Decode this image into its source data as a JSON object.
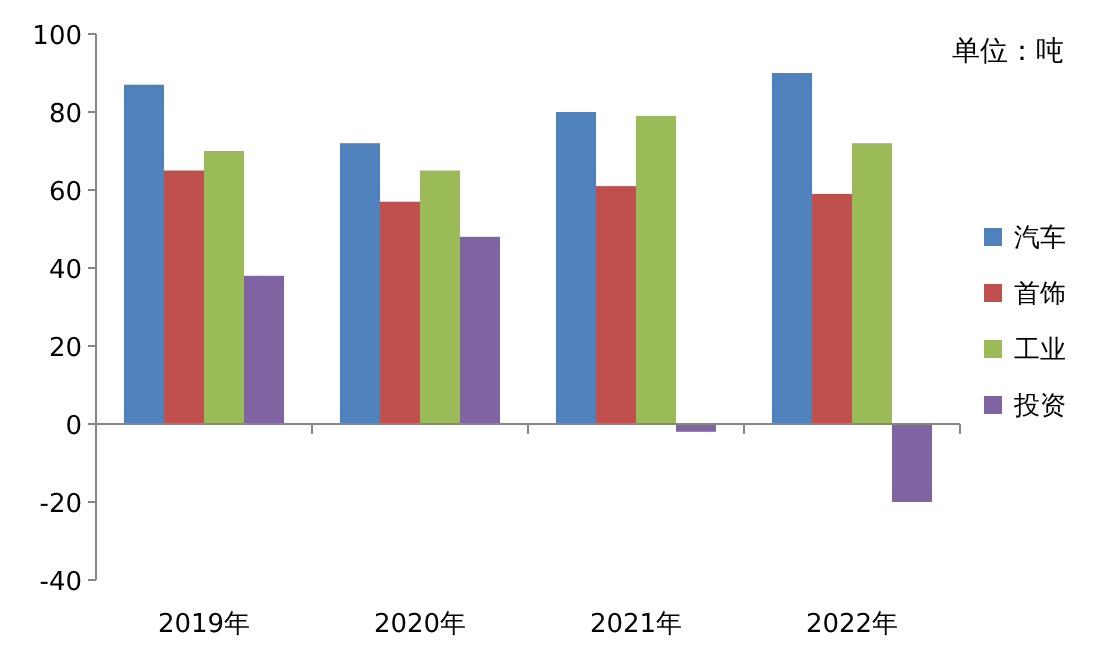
{
  "chart_data": {
    "type": "bar",
    "categories": [
      "2019年",
      "2020年",
      "2021年",
      "2022年"
    ],
    "series": [
      {
        "name": "汽车",
        "color": "#4f81bd",
        "values": [
          87,
          72,
          80,
          90
        ]
      },
      {
        "name": "首饰",
        "color": "#c0504d",
        "values": [
          65,
          57,
          61,
          59
        ]
      },
      {
        "name": "工业",
        "color": "#9bbb59",
        "values": [
          70,
          65,
          79,
          72
        ]
      },
      {
        "name": "投资",
        "color": "#8064a2",
        "values": [
          38,
          48,
          -2,
          -20
        ]
      }
    ],
    "ylim": [
      -40,
      100
    ],
    "yticks": [
      -40,
      -20,
      0,
      20,
      40,
      60,
      80,
      100
    ],
    "annotations": [
      "单位：吨"
    ],
    "legend": "right"
  }
}
